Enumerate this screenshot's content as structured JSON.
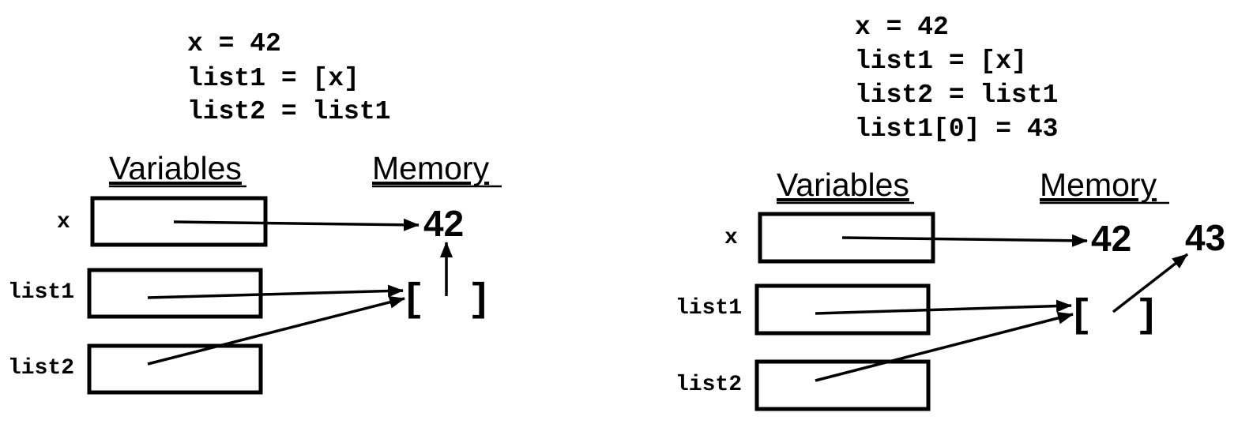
{
  "left_panel": {
    "code_lines": [
      "x = 42",
      "list1 = [x]",
      "list2 = list1"
    ],
    "variables_heading": "Variables",
    "memory_heading": "Memory",
    "variables": [
      "x",
      "list1",
      "list2"
    ],
    "memory_values": [
      "42"
    ],
    "list_open": "[",
    "list_close": "]"
  },
  "right_panel": {
    "code_lines": [
      "x = 42",
      "list1 = [x]",
      "list2 = list1",
      "list1[0] = 43"
    ],
    "variables_heading": "Variables",
    "memory_heading": "Memory",
    "variables": [
      "x",
      "list1",
      "list2"
    ],
    "memory_values": [
      "42",
      "43"
    ],
    "list_open": "[",
    "list_close": "]"
  },
  "colors": {
    "ink": "#000000",
    "background": "#ffffff"
  }
}
